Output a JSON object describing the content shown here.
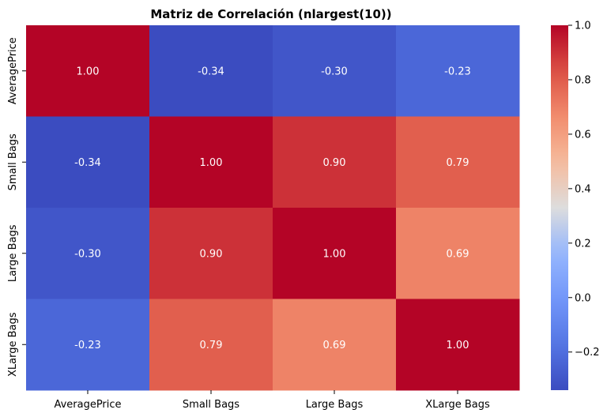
{
  "chart_data": {
    "type": "heatmap",
    "title": "Matriz de Correlación (nlargest(10))",
    "xlabel": "",
    "ylabel": "",
    "x_categories": [
      "AveragePrice",
      "Small Bags",
      "Large Bags",
      "XLarge Bags"
    ],
    "y_categories": [
      "AveragePrice",
      "Small Bags",
      "Large Bags",
      "XLarge Bags"
    ],
    "values": [
      [
        1.0,
        -0.34,
        -0.3,
        -0.23
      ],
      [
        -0.34,
        1.0,
        0.9,
        0.79
      ],
      [
        -0.3,
        0.9,
        1.0,
        0.69
      ],
      [
        -0.23,
        0.79,
        0.69,
        1.0
      ]
    ],
    "annotations": [
      [
        "1.00",
        "-0.34",
        "-0.30",
        "-0.23"
      ],
      [
        "-0.34",
        "1.00",
        "0.90",
        "0.79"
      ],
      [
        "-0.30",
        "0.90",
        "1.00",
        "0.69"
      ],
      [
        "-0.23",
        "0.79",
        "0.69",
        "1.00"
      ]
    ],
    "colormap": "coolwarm",
    "colorbar": {
      "vmin": -0.34,
      "vmax": 1.0,
      "ticks": [
        -0.2,
        0.0,
        0.2,
        0.4,
        0.6,
        0.8,
        1.0
      ],
      "tick_labels": [
        "−0.2",
        "0.0",
        "0.2",
        "0.4",
        "0.6",
        "0.8",
        "1.0"
      ]
    }
  }
}
